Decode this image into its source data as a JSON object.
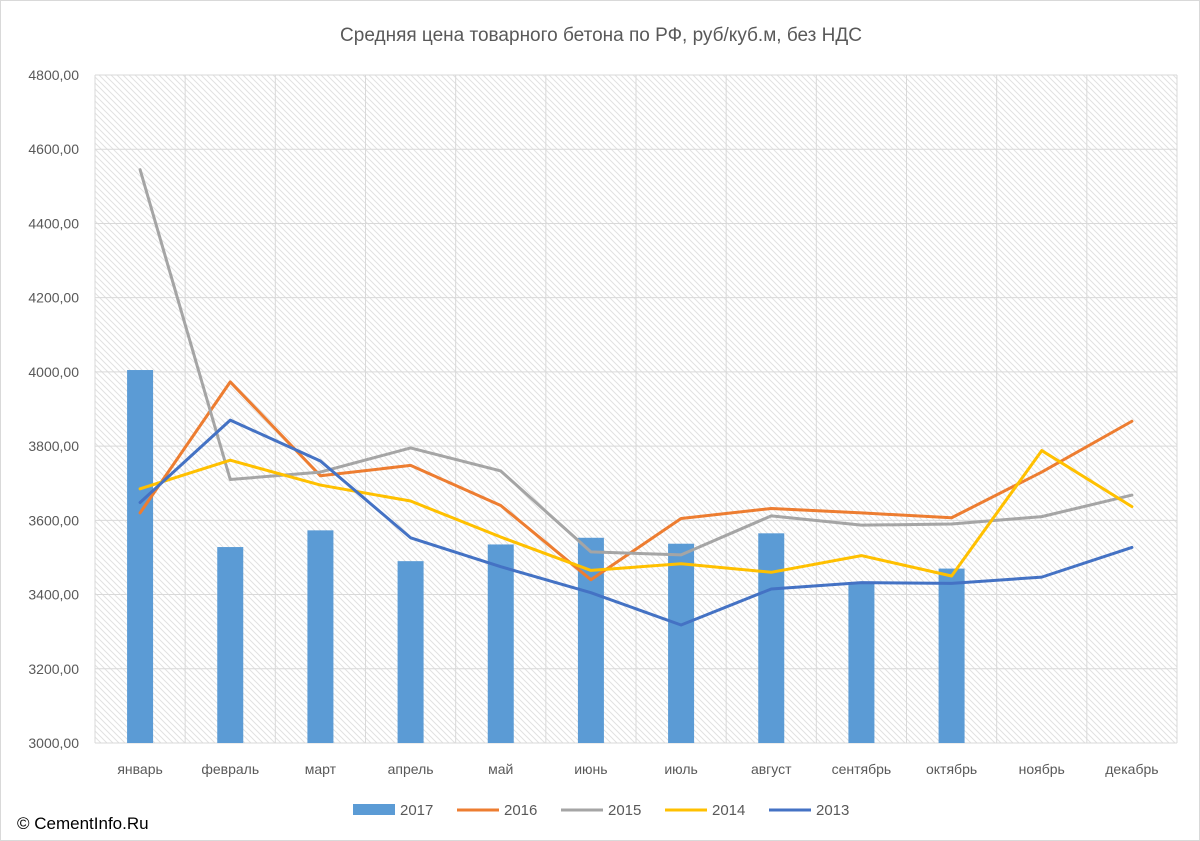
{
  "copyright": "© CementInfo.Ru",
  "chart_data": {
    "type": "bar",
    "title": "Средняя цена товарного бетона по РФ, руб/куб.м, без НДС",
    "xlabel": "",
    "ylabel": "",
    "categories": [
      "январь",
      "февраль",
      "март",
      "апрель",
      "май",
      "июнь",
      "июль",
      "август",
      "сентябрь",
      "октябрь",
      "ноябрь",
      "декабрь"
    ],
    "ylim": [
      3000,
      4800
    ],
    "yticks": [
      3000,
      3200,
      3400,
      3600,
      3800,
      4000,
      4200,
      4400,
      4600,
      4800
    ],
    "ytick_labels": [
      "3000,00",
      "3200,00",
      "3400,00",
      "3600,00",
      "3800,00",
      "4000,00",
      "4200,00",
      "4400,00",
      "4600,00",
      "4800,00"
    ],
    "grid": true,
    "legend_position": "bottom",
    "series": [
      {
        "name": "2017",
        "type": "bar",
        "color": "#5b9bd5",
        "values": [
          4005,
          3528,
          3573,
          3490,
          3535,
          3553,
          3537,
          3565,
          3432,
          3470,
          null,
          null
        ]
      },
      {
        "name": "2016",
        "type": "line",
        "color": "#ed7d31",
        "values": [
          3620,
          3973,
          3720,
          3748,
          3640,
          3440,
          3605,
          3632,
          3620,
          3607,
          3730,
          3867
        ]
      },
      {
        "name": "2015",
        "type": "line",
        "color": "#a5a5a5",
        "values": [
          4545,
          3710,
          3730,
          3795,
          3733,
          3515,
          3507,
          3612,
          3587,
          3590,
          3610,
          3668
        ]
      },
      {
        "name": "2014",
        "type": "line",
        "color": "#ffc000",
        "values": [
          3685,
          3762,
          3695,
          3652,
          3555,
          3465,
          3483,
          3460,
          3505,
          3450,
          3788,
          3637
        ]
      },
      {
        "name": "2013",
        "type": "line",
        "color": "#4472c4",
        "values": [
          3648,
          3870,
          3760,
          3553,
          3475,
          3405,
          3318,
          3415,
          3432,
          3430,
          3447,
          3527
        ]
      }
    ]
  }
}
